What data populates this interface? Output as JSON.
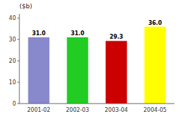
{
  "chart_data": {
    "type": "bar",
    "title": "($b)",
    "categories": [
      "2001-02",
      "2002-03",
      "2003-04",
      "2004-05"
    ],
    "values": [
      31.0,
      31.0,
      29.3,
      36.0
    ],
    "value_labels": [
      "31.0",
      "31.0",
      "29.3",
      "36.0"
    ],
    "colors": [
      "#8888cc",
      "#22cc22",
      "#cc0000",
      "#ffff00"
    ],
    "ylim": [
      0,
      42
    ],
    "yticks": [
      0,
      10,
      20,
      30,
      40
    ],
    "grid": false,
    "data_labels": true
  }
}
